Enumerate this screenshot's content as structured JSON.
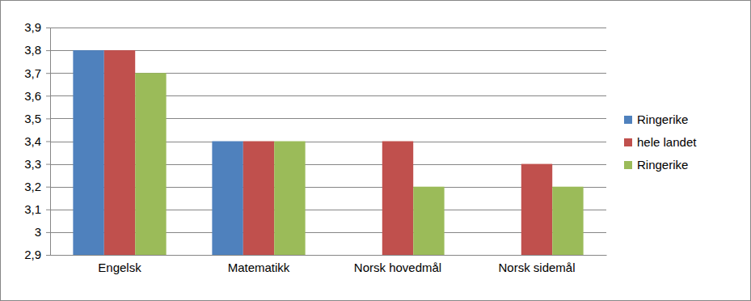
{
  "chart_data": {
    "type": "bar",
    "categories": [
      "Engelsk",
      "Matematikk",
      "Norsk hovedmål",
      "Norsk sidemål"
    ],
    "series": [
      {
        "name": "Ringerike",
        "color": "#4f81bd",
        "values": [
          3.8,
          3.4,
          null,
          null
        ]
      },
      {
        "name": "hele landet",
        "color": "#c0504d",
        "values": [
          3.8,
          3.4,
          3.4,
          3.3
        ]
      },
      {
        "name": "Ringerike",
        "color": "#9bbb59",
        "values": [
          3.7,
          3.4,
          3.2,
          3.2
        ]
      }
    ],
    "ylim": [
      2.9,
      3.9
    ],
    "yticks": [
      {
        "value": 2.9,
        "label": "2,9"
      },
      3,
      {
        "value": 3.1,
        "label": "3,1"
      },
      {
        "value": 3.2,
        "label": "3,2"
      },
      {
        "value": 3.3,
        "label": "3,3"
      },
      {
        "value": 3.4,
        "label": "3,4"
      },
      {
        "value": 3.5,
        "label": "3,5"
      },
      {
        "value": 3.6,
        "label": "3,6"
      },
      {
        "value": 3.7,
        "label": "3,7"
      },
      {
        "value": 3.8,
        "label": "3,8"
      },
      {
        "value": 3.9,
        "label": "3,9"
      }
    ],
    "grid": true,
    "legend": "right"
  }
}
